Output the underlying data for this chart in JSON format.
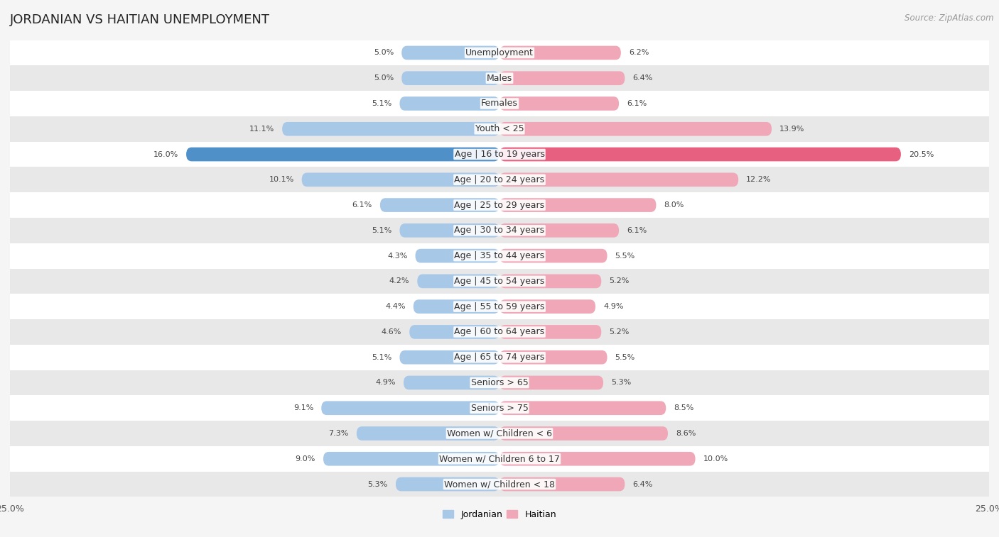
{
  "title": "JORDANIAN VS HAITIAN UNEMPLOYMENT",
  "source": "Source: ZipAtlas.com",
  "categories": [
    "Unemployment",
    "Males",
    "Females",
    "Youth < 25",
    "Age | 16 to 19 years",
    "Age | 20 to 24 years",
    "Age | 25 to 29 years",
    "Age | 30 to 34 years",
    "Age | 35 to 44 years",
    "Age | 45 to 54 years",
    "Age | 55 to 59 years",
    "Age | 60 to 64 years",
    "Age | 65 to 74 years",
    "Seniors > 65",
    "Seniors > 75",
    "Women w/ Children < 6",
    "Women w/ Children 6 to 17",
    "Women w/ Children < 18"
  ],
  "jordanian": [
    5.0,
    5.0,
    5.1,
    11.1,
    16.0,
    10.1,
    6.1,
    5.1,
    4.3,
    4.2,
    4.4,
    4.6,
    5.1,
    4.9,
    9.1,
    7.3,
    9.0,
    5.3
  ],
  "haitian": [
    6.2,
    6.4,
    6.1,
    13.9,
    20.5,
    12.2,
    8.0,
    6.1,
    5.5,
    5.2,
    4.9,
    5.2,
    5.5,
    5.3,
    8.5,
    8.6,
    10.0,
    6.4
  ],
  "jordanian_color": "#a8c8e8",
  "haitian_color": "#f0a8b8",
  "jordanian_highlight_color": "#5090c8",
  "haitian_highlight_color": "#e86080",
  "highlight_rows": [
    4
  ],
  "bg_color": "#f5f5f5",
  "row_light": "#ffffff",
  "row_dark": "#e8e8e8",
  "xlim": 25.0,
  "bar_height": 0.55,
  "title_fontsize": 13,
  "label_fontsize": 9,
  "value_fontsize": 8,
  "source_fontsize": 8.5
}
